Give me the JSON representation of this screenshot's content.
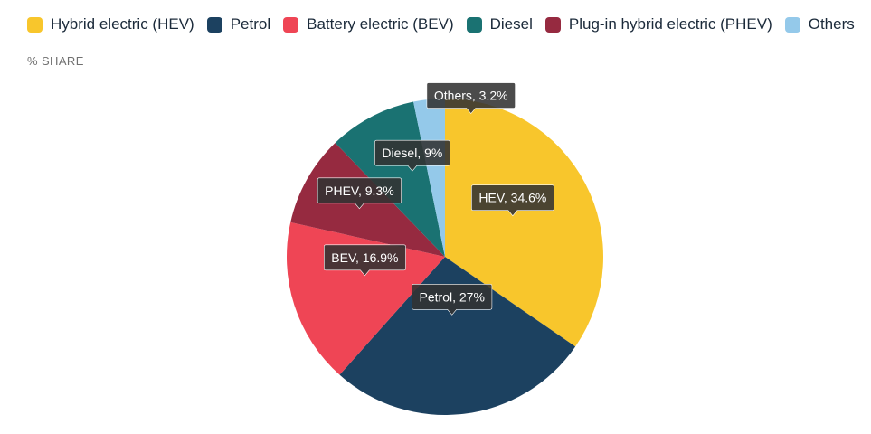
{
  "legend": [
    {
      "label": "Hybrid electric (HEV)",
      "color": "#f8c62c"
    },
    {
      "label": "Petrol",
      "color": "#1c4160"
    },
    {
      "label": "Battery electric (BEV)",
      "color": "#ef4555"
    },
    {
      "label": "Diesel",
      "color": "#1a7272"
    },
    {
      "label": "Plug-in hybrid electric (PHEV)",
      "color": "#962a40"
    },
    {
      "label": "Others",
      "color": "#94c9ea"
    }
  ],
  "chart_data": {
    "type": "pie",
    "ylabel": "% SHARE",
    "slices": [
      {
        "label": "HEV",
        "value": 34.6,
        "color": "#f8c62c",
        "data_label": "HEV, 34.6%"
      },
      {
        "label": "Petrol",
        "value": 27,
        "color": "#1c4160",
        "data_label": "Petrol, 27%"
      },
      {
        "label": "BEV",
        "value": 16.9,
        "color": "#ef4555",
        "data_label": "BEV, 16.9%"
      },
      {
        "label": "PHEV",
        "value": 9.3,
        "color": "#962a40",
        "data_label": "PHEV, 9.3%"
      },
      {
        "label": "Diesel",
        "value": 9,
        "color": "#1a7272",
        "data_label": "Diesel, 9%"
      },
      {
        "label": "Others",
        "value": 3.2,
        "color": "#94c9ea",
        "data_label": "Others, 3.2%"
      }
    ]
  }
}
